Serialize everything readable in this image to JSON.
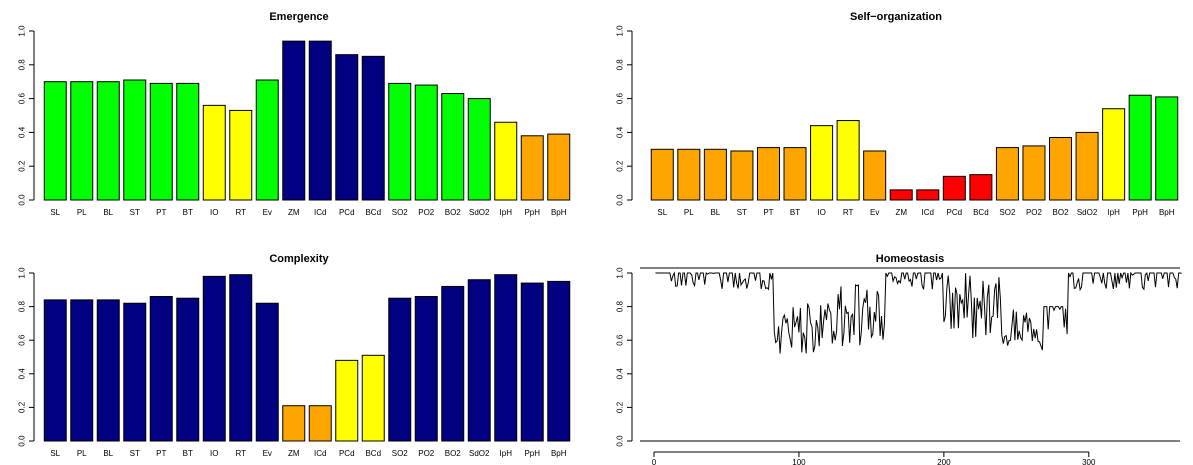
{
  "chart_data": [
    {
      "type": "bar",
      "title": "Emergence",
      "xlabel": "",
      "ylabel": "",
      "ylim": [
        0,
        1
      ],
      "yticks": [
        "0.0",
        "0.2",
        "0.4",
        "0.6",
        "0.8",
        "1.0"
      ],
      "categories": [
        "SL",
        "PL",
        "BL",
        "ST",
        "PT",
        "BT",
        "IO",
        "RT",
        "Ev",
        "ZM",
        "ICd",
        "PCd",
        "BCd",
        "SO2",
        "PO2",
        "BO2",
        "SdO2",
        "IpH",
        "PpH",
        "BpH"
      ],
      "values": [
        0.7,
        0.7,
        0.7,
        0.71,
        0.69,
        0.69,
        0.56,
        0.53,
        0.71,
        0.94,
        0.94,
        0.86,
        0.85,
        0.69,
        0.68,
        0.63,
        0.6,
        0.46,
        0.38,
        0.39
      ],
      "colors": [
        "#00ff00",
        "#00ff00",
        "#00ff00",
        "#00ff00",
        "#00ff00",
        "#00ff00",
        "#ffff00",
        "#ffff00",
        "#00ff00",
        "#000080",
        "#000080",
        "#000080",
        "#000080",
        "#00ff00",
        "#00ff00",
        "#00ff00",
        "#00ff00",
        "#ffff00",
        "#ffa500",
        "#ffa500"
      ]
    },
    {
      "type": "bar",
      "title": "Self−organization",
      "xlabel": "",
      "ylabel": "",
      "ylim": [
        0,
        1
      ],
      "yticks": [
        "0.0",
        "0.2",
        "0.4",
        "0.6",
        "0.8",
        "1.0"
      ],
      "categories": [
        "SL",
        "PL",
        "BL",
        "ST",
        "PT",
        "BT",
        "IO",
        "RT",
        "Ev",
        "ZM",
        "ICd",
        "PCd",
        "BCd",
        "SO2",
        "PO2",
        "BO2",
        "SdO2",
        "IpH",
        "PpH",
        "BpH"
      ],
      "values": [
        0.3,
        0.3,
        0.3,
        0.29,
        0.31,
        0.31,
        0.44,
        0.47,
        0.29,
        0.06,
        0.06,
        0.14,
        0.15,
        0.31,
        0.32,
        0.37,
        0.4,
        0.54,
        0.62,
        0.61
      ],
      "colors": [
        "#ffa500",
        "#ffa500",
        "#ffa500",
        "#ffa500",
        "#ffa500",
        "#ffa500",
        "#ffff00",
        "#ffff00",
        "#ffa500",
        "#ff0000",
        "#ff0000",
        "#ff0000",
        "#ff0000",
        "#ffa500",
        "#ffa500",
        "#ffa500",
        "#ffa500",
        "#ffff00",
        "#00ff00",
        "#00ff00"
      ]
    },
    {
      "type": "bar",
      "title": "Complexity",
      "xlabel": "",
      "ylabel": "",
      "ylim": [
        0,
        1
      ],
      "yticks": [
        "0.0",
        "0.2",
        "0.4",
        "0.6",
        "0.8",
        "1.0"
      ],
      "categories": [
        "SL",
        "PL",
        "BL",
        "ST",
        "PT",
        "BT",
        "IO",
        "RT",
        "Ev",
        "ZM",
        "ICd",
        "PCd",
        "BCd",
        "SO2",
        "PO2",
        "BO2",
        "SdO2",
        "IpH",
        "PpH",
        "BpH"
      ],
      "values": [
        0.84,
        0.84,
        0.84,
        0.82,
        0.86,
        0.85,
        0.98,
        0.99,
        0.82,
        0.21,
        0.21,
        0.48,
        0.51,
        0.85,
        0.86,
        0.92,
        0.96,
        0.99,
        0.94,
        0.95
      ],
      "colors": [
        "#000080",
        "#000080",
        "#000080",
        "#000080",
        "#000080",
        "#000080",
        "#000080",
        "#000080",
        "#000080",
        "#ffa500",
        "#ffa500",
        "#ffff00",
        "#ffff00",
        "#000080",
        "#000080",
        "#000080",
        "#000080",
        "#000080",
        "#000080",
        "#000080"
      ]
    },
    {
      "type": "line",
      "title": "Homeostasis",
      "xlabel": "",
      "ylabel": "",
      "xlim": [
        0,
        365
      ],
      "ylim": [
        0,
        1
      ],
      "xticks": [
        "0",
        "100",
        "200",
        "300"
      ],
      "yticks": [
        "0.0",
        "0.2",
        "0.4",
        "0.6",
        "0.8",
        "1.0"
      ],
      "reference_lines": [
        1.03,
        0
      ],
      "segments": [
        {
          "x_range": [
            1,
            10
          ],
          "y_min": 1.0,
          "y_max": 1.0,
          "seed": 11
        },
        {
          "x_range": [
            10,
            83
          ],
          "y_min": 0.9,
          "y_max": 1.0,
          "seed": 23
        },
        {
          "x_range": [
            83,
            85
          ],
          "y_min": 0.55,
          "y_max": 0.95,
          "seed": 31
        },
        {
          "x_range": [
            85,
            125
          ],
          "y_min": 0.52,
          "y_max": 0.82,
          "seed": 47
        },
        {
          "x_range": [
            125,
            126
          ],
          "y_min": 0.45,
          "y_max": 0.6,
          "seed": 53
        },
        {
          "x_range": [
            126,
            160
          ],
          "y_min": 0.55,
          "y_max": 0.95,
          "seed": 61
        },
        {
          "x_range": [
            160,
            200
          ],
          "y_min": 0.9,
          "y_max": 1.0,
          "seed": 73
        },
        {
          "x_range": [
            200,
            240
          ],
          "y_min": 0.6,
          "y_max": 1.0,
          "seed": 89
        },
        {
          "x_range": [
            240,
            268
          ],
          "y_min": 0.56,
          "y_max": 0.82,
          "seed": 97
        },
        {
          "x_range": [
            268,
            269
          ],
          "y_min": 0.5,
          "y_max": 0.65,
          "seed": 101
        },
        {
          "x_range": [
            269,
            283
          ],
          "y_min": 0.66,
          "y_max": 0.8,
          "seed": 109
        },
        {
          "x_range": [
            283,
            286
          ],
          "y_min": 0.55,
          "y_max": 1.0,
          "seed": 113
        },
        {
          "x_range": [
            286,
            365
          ],
          "y_min": 0.9,
          "y_max": 1.0,
          "seed": 127
        }
      ]
    }
  ]
}
